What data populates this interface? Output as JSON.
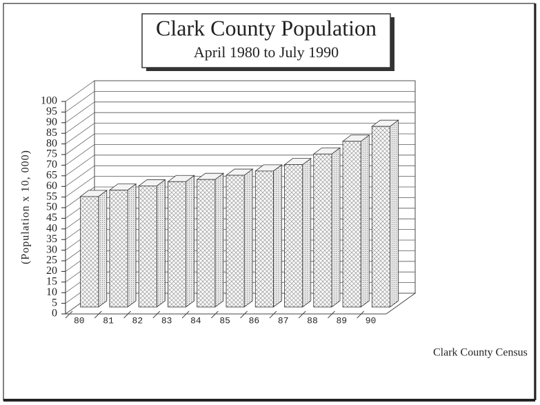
{
  "chart_data": {
    "type": "bar3d",
    "title": "Clark County Population",
    "subtitle": "April 1980 to July 1990",
    "y_label": "(Population x 10, 000)",
    "series": [
      {
        "name": "Clark County Census",
        "values": [
          52,
          55,
          57,
          59,
          60,
          62,
          64,
          67,
          72,
          78,
          85
        ]
      }
    ],
    "categories": [
      "80",
      "81",
      "82",
      "83",
      "84",
      "85",
      "86",
      "87",
      "88",
      "89",
      "90"
    ],
    "ylim": [
      0,
      100
    ],
    "yticks": [
      0,
      5,
      10,
      15,
      20,
      25,
      30,
      35,
      40,
      45,
      50,
      55,
      60,
      65,
      70,
      75,
      80,
      85,
      90,
      95,
      100
    ],
    "grid": true
  }
}
